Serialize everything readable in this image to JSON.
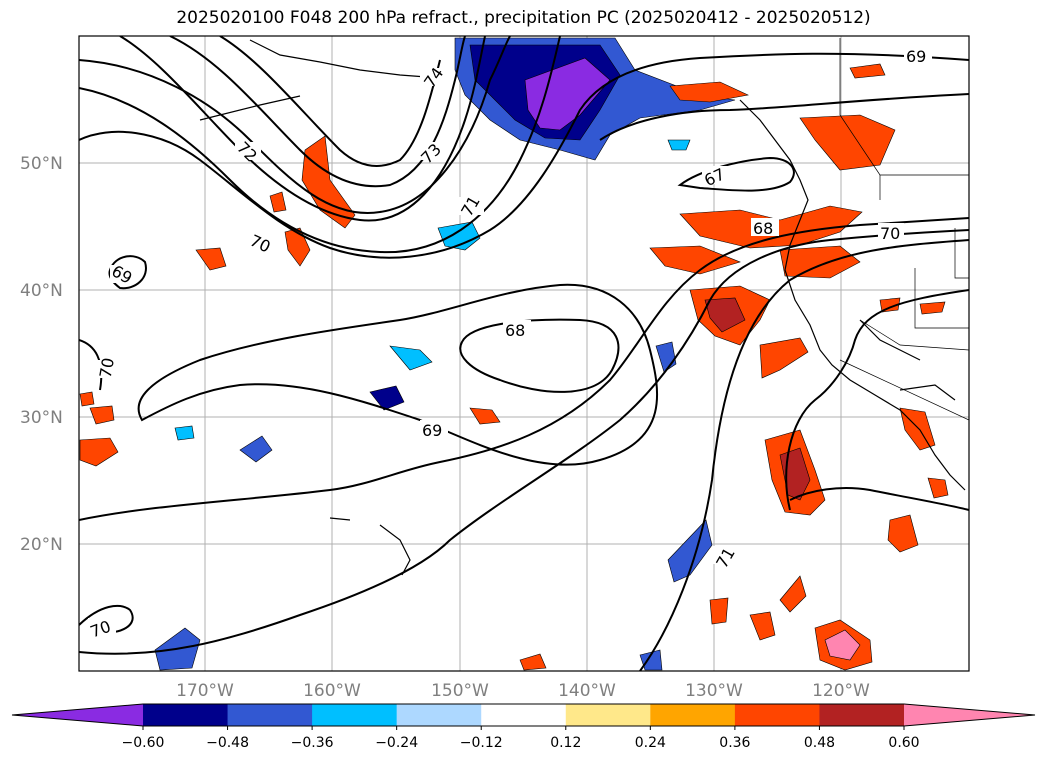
{
  "title": "2025020100 F048 200 hPa refract., precipitation PC (2025020412 - 2025020512)",
  "latitude_labels": [
    "50°N",
    "40°N",
    "30°N",
    "20°N"
  ],
  "longitude_labels": [
    "170°W",
    "160°W",
    "150°W",
    "140°W",
    "130°W",
    "120°W"
  ],
  "contour_labels": [
    "74",
    "73",
    "72",
    "71",
    "70",
    "70",
    "69",
    "69",
    "68",
    "68",
    "67",
    "69",
    "70",
    "71",
    "70"
  ],
  "colorbar": {
    "tick_labels": [
      "−0.60",
      "−0.48",
      "−0.36",
      "−0.24",
      "−0.12",
      "0.12",
      "0.24",
      "0.36",
      "0.48",
      "0.60"
    ],
    "colors": [
      "#8a2be2",
      "#00008b",
      "#3258d2",
      "#00bfff",
      "#add8ff",
      "#ffffff",
      "#ffe88a",
      "#ffa500",
      "#ff4500",
      "#b22222",
      "#ff85b0"
    ]
  }
}
